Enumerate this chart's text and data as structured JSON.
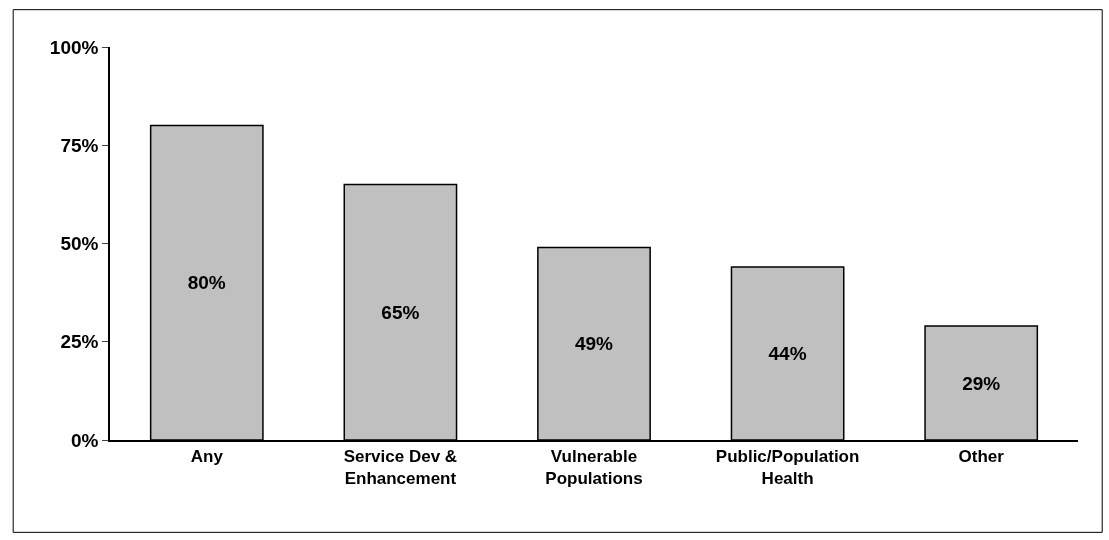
{
  "chart_data": {
    "type": "bar",
    "categories": [
      "Any",
      "Service Dev &\nEnhancement",
      "Vulnerable\nPopulations",
      "Public/Population\nHealth",
      "Other"
    ],
    "values": [
      80,
      65,
      49,
      44,
      29
    ],
    "value_labels": [
      "80%",
      "65%",
      "49%",
      "44%",
      "29%"
    ],
    "color": "#c0c0c0",
    "ylim": [
      0,
      100
    ],
    "yticks": [
      {
        "value": 0,
        "label": "0%"
      },
      {
        "value": 25,
        "label": "25%"
      },
      {
        "value": 50,
        "label": "50%"
      },
      {
        "value": 75,
        "label": "75%"
      },
      {
        "value": 100,
        "label": "100%"
      }
    ]
  }
}
